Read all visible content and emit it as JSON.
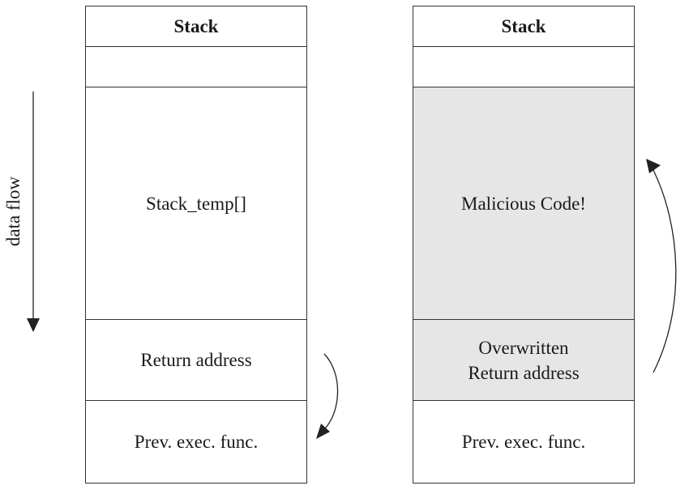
{
  "diagram": {
    "flow_label": "data flow",
    "left_stack": {
      "header": "Stack",
      "buffer": "Stack_temp[]",
      "return_address": "Return address",
      "prev_func": "Prev. exec. func."
    },
    "right_stack": {
      "header": "Stack",
      "malicious": "Malicious Code!",
      "overwritten_line1": "Overwritten",
      "overwritten_line2": "Return address",
      "prev_func": "Prev. exec. func."
    },
    "colors": {
      "border": "#333333",
      "shaded_fill": "#e6e6e6",
      "arrow": "#222222"
    }
  }
}
